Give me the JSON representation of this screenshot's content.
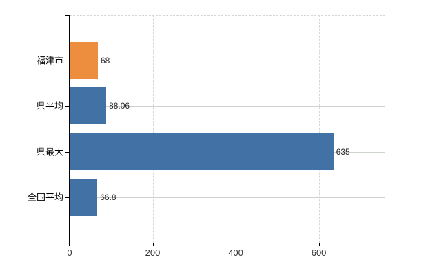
{
  "chart_data": {
    "type": "bar",
    "orientation": "horizontal",
    "title": "",
    "categories": [
      "福津市",
      "県平均",
      "県最大",
      "全国平均"
    ],
    "values": [
      68,
      88.06,
      635,
      66.8
    ],
    "value_labels": [
      "68",
      "88.06",
      "635",
      "66.8"
    ],
    "bar_colors": [
      "#ec8e3d",
      "#4271a6",
      "#4271a6",
      "#4271a6"
    ],
    "x_tick_values": [
      0,
      200,
      400,
      600
    ],
    "x_tick_labels": [
      "0",
      "200",
      "400",
      "600"
    ],
    "xlim": [
      0,
      760
    ],
    "grid": {
      "vertical_style": "dashed",
      "horizontal_style": "solid",
      "gridlines_on": true
    },
    "legend_position": "none"
  },
  "colors": {
    "background": "#ffffff",
    "axis": "#000000",
    "horizontal_gridline": "#ccd4cb",
    "vertical_gridline": "#d4d4da",
    "top_border": "#d6d6d6",
    "bar_orange": "#ec8e3d",
    "bar_blue": "#4271a6",
    "value_label_text": "#2b2b2b",
    "category_label_text": "#000000",
    "x_tick_label_text": "#333333"
  }
}
